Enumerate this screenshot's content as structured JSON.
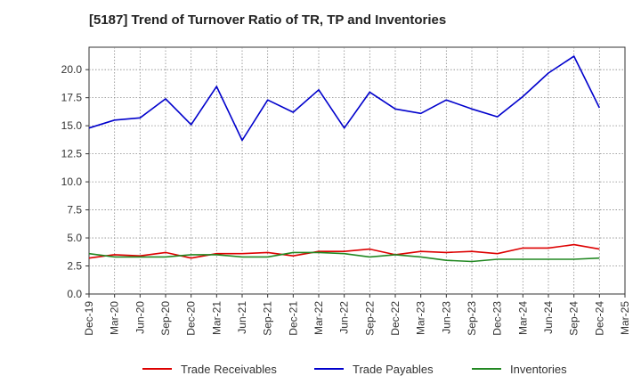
{
  "title": "[5187]  Trend of Turnover Ratio of TR, TP and Inventories",
  "chart_data": {
    "type": "line",
    "title": "[5187]  Trend of Turnover Ratio of TR, TP and Inventories",
    "xlabel": "",
    "ylabel": "",
    "grid": true,
    "legend_position": "bottom",
    "ylim": [
      0,
      22
    ],
    "yticks": [
      0.0,
      2.5,
      5.0,
      7.5,
      10.0,
      12.5,
      15.0,
      17.5,
      20.0
    ],
    "ytick_labels": [
      "0.0",
      "2.5",
      "5.0",
      "7.5",
      "10.0",
      "12.5",
      "15.0",
      "17.5",
      "20.0"
    ],
    "x": [
      "Dec-19",
      "Mar-20",
      "Jun-20",
      "Sep-20",
      "Dec-20",
      "Mar-21",
      "Jun-21",
      "Sep-21",
      "Dec-21",
      "Mar-22",
      "Jun-22",
      "Sep-22",
      "Dec-22",
      "Mar-23",
      "Jun-23",
      "Sep-23",
      "Dec-23",
      "Mar-24",
      "Jun-24",
      "Sep-24",
      "Dec-24"
    ],
    "xtick_labels": [
      "Dec-19",
      "Mar-20",
      "Jun-20",
      "Sep-20",
      "Dec-20",
      "Mar-21",
      "Jun-21",
      "Sep-21",
      "Dec-21",
      "Mar-22",
      "Jun-22",
      "Sep-22",
      "Dec-22",
      "Mar-23",
      "Jun-23",
      "Sep-23",
      "Dec-23",
      "Mar-24",
      "Jun-24",
      "Sep-24",
      "Dec-24",
      "Mar-25"
    ],
    "series": [
      {
        "name": "Trade Receivables",
        "color": "#dd0000",
        "values": [
          3.2,
          3.5,
          3.4,
          3.7,
          3.2,
          3.6,
          3.6,
          3.7,
          3.4,
          3.8,
          3.8,
          4.0,
          3.5,
          3.8,
          3.7,
          3.8,
          3.6,
          4.1,
          4.1,
          4.4,
          4.0
        ]
      },
      {
        "name": "Trade Payables",
        "color": "#0000cc",
        "values": [
          14.8,
          15.5,
          15.7,
          17.4,
          15.1,
          18.5,
          13.7,
          17.3,
          16.2,
          18.2,
          14.8,
          18.0,
          16.5,
          16.1,
          17.3,
          16.5,
          15.8,
          17.6,
          19.7,
          21.2,
          16.6
        ]
      },
      {
        "name": "Inventories",
        "color": "#228822",
        "values": [
          3.6,
          3.3,
          3.3,
          3.3,
          3.5,
          3.5,
          3.3,
          3.3,
          3.7,
          3.7,
          3.6,
          3.3,
          3.5,
          3.3,
          3.0,
          2.9,
          3.1,
          3.1,
          3.1,
          3.1,
          3.2
        ]
      }
    ]
  }
}
